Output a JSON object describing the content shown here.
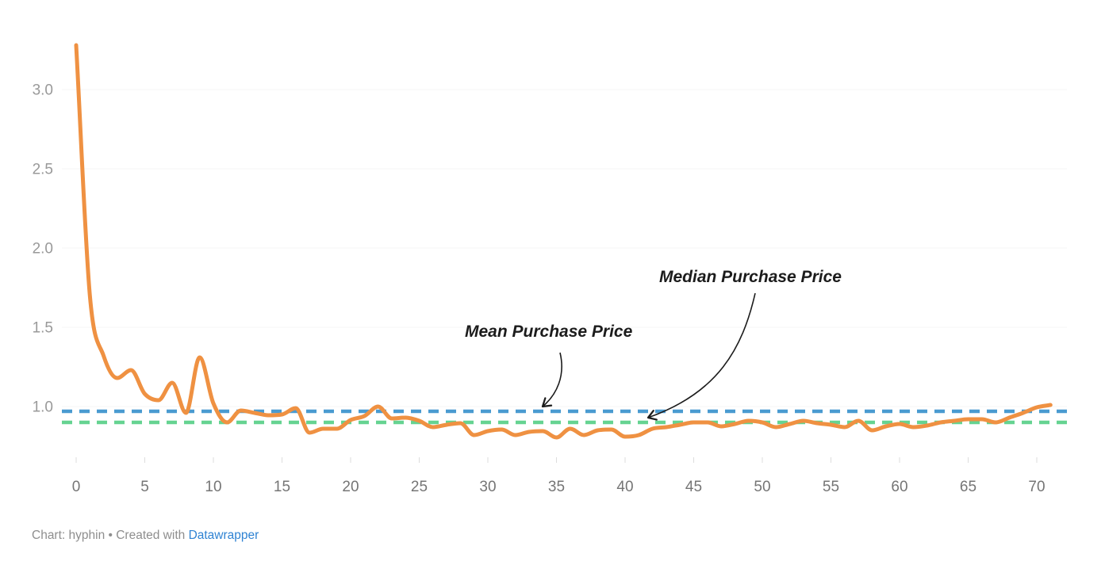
{
  "chart_data": {
    "type": "line",
    "x": [
      0,
      1,
      2,
      3,
      4,
      5,
      6,
      7,
      8,
      9,
      10,
      11,
      12,
      13,
      14,
      15,
      16,
      17,
      18,
      19,
      20,
      21,
      22,
      23,
      24,
      25,
      26,
      27,
      28,
      29,
      30,
      31,
      32,
      33,
      34,
      35,
      36,
      37,
      38,
      39,
      40,
      41,
      42,
      43,
      44,
      45,
      46,
      47,
      48,
      49,
      50,
      51,
      52,
      53,
      54,
      55,
      56,
      57,
      58,
      59,
      60,
      61,
      62,
      63,
      64,
      65,
      66,
      67,
      68,
      69,
      70,
      71
    ],
    "series": [
      {
        "name": "Purchase Price",
        "color": "#EF9142",
        "values": [
          3.28,
          1.7,
          1.32,
          1.18,
          1.23,
          1.08,
          1.04,
          1.15,
          0.96,
          1.31,
          1.02,
          0.9,
          0.975,
          0.96,
          0.945,
          0.95,
          0.99,
          0.835,
          0.86,
          0.86,
          0.915,
          0.94,
          1.0,
          0.925,
          0.93,
          0.91,
          0.87,
          0.885,
          0.895,
          0.82,
          0.845,
          0.855,
          0.82,
          0.84,
          0.845,
          0.805,
          0.86,
          0.82,
          0.85,
          0.855,
          0.81,
          0.82,
          0.86,
          0.87,
          0.885,
          0.9,
          0.9,
          0.875,
          0.89,
          0.91,
          0.9,
          0.87,
          0.89,
          0.91,
          0.895,
          0.885,
          0.87,
          0.91,
          0.85,
          0.875,
          0.89,
          0.87,
          0.88,
          0.9,
          0.91,
          0.92,
          0.92,
          0.9,
          0.93,
          0.96,
          0.995,
          1.01
        ]
      }
    ],
    "reference_lines": [
      {
        "name": "Mean Purchase Price",
        "value": 0.97,
        "color": "#4A9BD1",
        "style": "dashed"
      },
      {
        "name": "Median Purchase Price",
        "value": 0.9,
        "color": "#66D391",
        "style": "dashed"
      }
    ],
    "title": "",
    "xlabel": "",
    "ylabel": "",
    "x_ticks": [
      "0",
      "5",
      "10",
      "15",
      "20",
      "25",
      "30",
      "35",
      "40",
      "45",
      "50",
      "55",
      "60",
      "65",
      "70"
    ],
    "x_tick_values": [
      0,
      5,
      10,
      15,
      20,
      25,
      30,
      35,
      40,
      45,
      50,
      55,
      60,
      65,
      70
    ],
    "y_ticks": [
      "1.0",
      "1.5",
      "2.0",
      "2.5",
      "3.0"
    ],
    "y_tick_values": [
      1.0,
      1.5,
      2.0,
      2.5,
      3.0
    ],
    "xlim": [
      0,
      71.5
    ],
    "ylim": [
      0.75,
      3.3
    ],
    "grid": "faint horizontal gridlines at y ticks",
    "legend_position": "none (direct annotations with arrows)"
  },
  "annotations": {
    "mean": {
      "label": "Mean Purchase Price",
      "points_to": "blue dashed line at 0.97"
    },
    "median": {
      "label": "Median Purchase Price",
      "points_to": "green dashed line at 0.90"
    }
  },
  "footer": {
    "credit_prefix": "Chart: hyphin • Created with ",
    "link_label": "Datawrapper"
  },
  "colors": {
    "series_orange": "#EF9142",
    "mean_blue": "#4A9BD1",
    "median_green": "#66D391",
    "annotation_text": "#1C1C1C",
    "arrow": "#1C1C1C",
    "y_tick_label": "#999999",
    "x_tick_label": "#757575",
    "gridline": "#F5F5F5",
    "tick_mark": "#DDDDDD",
    "footer_text": "#8E8E8E",
    "footer_link": "#2F83D3",
    "background": "#FFFFFF"
  }
}
